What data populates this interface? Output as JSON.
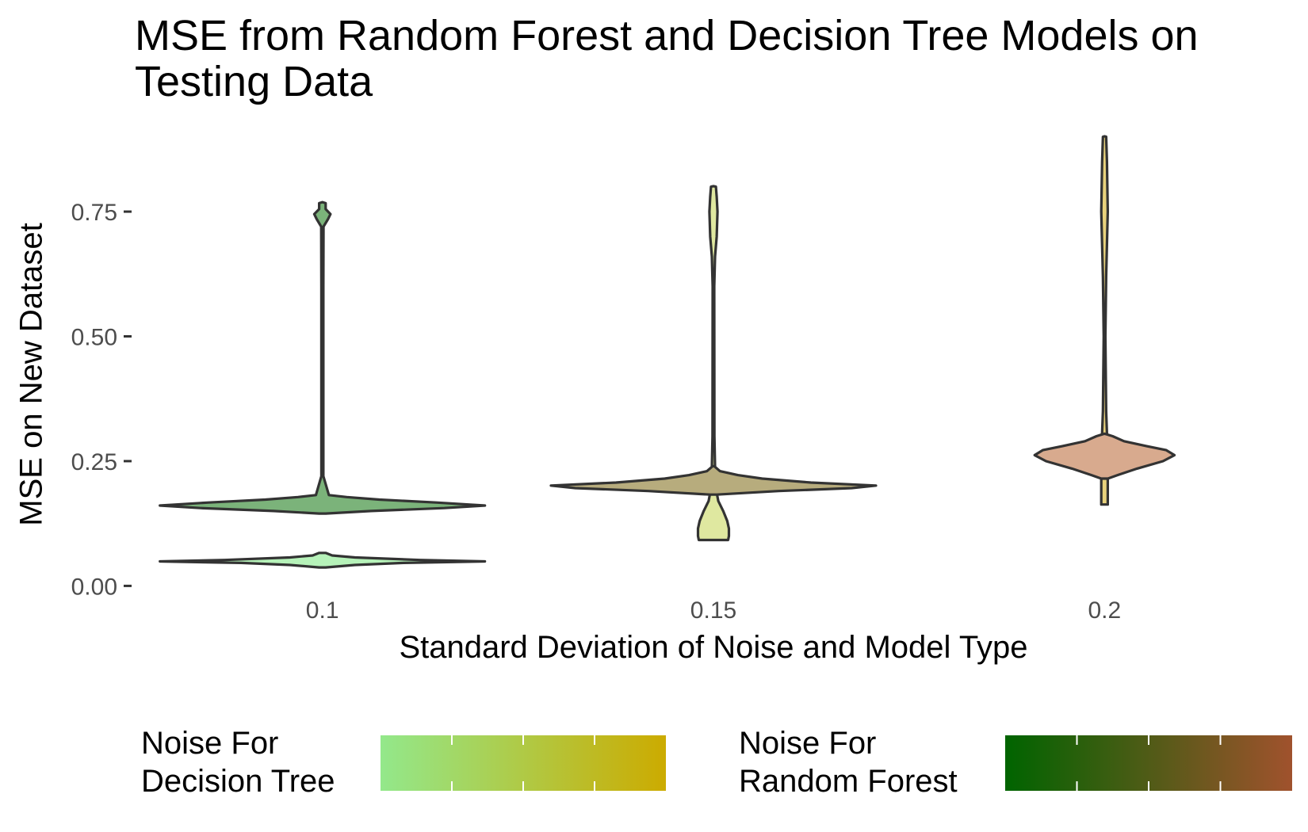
{
  "chart_data": {
    "type": "violin",
    "title": "MSE from Random Forest and Decision Tree Models on\nTesting Data",
    "xlabel": "Standard Deviation of Noise and Model Type",
    "ylabel": "MSE on New Dataset",
    "categories": [
      "0.1",
      "0.15",
      "0.2"
    ],
    "ylim": [
      -0.02,
      0.92
    ],
    "y_ticks": [
      {
        "value": 0.0,
        "label": "0.00"
      },
      {
        "value": 0.25,
        "label": "0.25"
      },
      {
        "value": 0.5,
        "label": "0.50"
      },
      {
        "value": 0.75,
        "label": "0.75"
      }
    ],
    "grid": false,
    "legend_position": "bottom",
    "series": [
      {
        "model": "Decision Tree",
        "noise": "0.1",
        "fill": "#b6f2b9",
        "density": [
          {
            "y": 0.037,
            "w": 0.02
          },
          {
            "y": 0.042,
            "w": 0.2
          },
          {
            "y": 0.046,
            "w": 0.5
          },
          {
            "y": 0.049,
            "w": 1.0
          },
          {
            "y": 0.052,
            "w": 0.6
          },
          {
            "y": 0.057,
            "w": 0.2
          },
          {
            "y": 0.061,
            "w": 0.06
          },
          {
            "y": 0.066,
            "w": 0.02
          }
        ]
      },
      {
        "model": "Random Forest",
        "noise": "0.1",
        "fill": "#7bb37a",
        "density": [
          {
            "y": 0.145,
            "w": 0.02
          },
          {
            "y": 0.15,
            "w": 0.3
          },
          {
            "y": 0.156,
            "w": 0.75
          },
          {
            "y": 0.161,
            "w": 1.0
          },
          {
            "y": 0.167,
            "w": 0.7
          },
          {
            "y": 0.173,
            "w": 0.35
          },
          {
            "y": 0.178,
            "w": 0.15
          },
          {
            "y": 0.182,
            "w": 0.04
          },
          {
            "y": 0.22,
            "w": 0.006
          },
          {
            "y": 0.4,
            "w": 0.006
          },
          {
            "y": 0.6,
            "w": 0.006
          },
          {
            "y": 0.72,
            "w": 0.007
          },
          {
            "y": 0.735,
            "w": 0.035
          },
          {
            "y": 0.745,
            "w": 0.05
          },
          {
            "y": 0.755,
            "w": 0.02
          },
          {
            "y": 0.767,
            "w": 0.02
          },
          {
            "y": 0.769,
            "w": 0.0
          }
        ]
      },
      {
        "model": "Decision Tree",
        "noise": "0.15",
        "fill": "#dfe8a0",
        "density": [
          {
            "y": 0.092,
            "w": 0.09
          },
          {
            "y": 0.1,
            "w": 0.095
          },
          {
            "y": 0.115,
            "w": 0.095
          },
          {
            "y": 0.13,
            "w": 0.085
          },
          {
            "y": 0.15,
            "w": 0.06
          },
          {
            "y": 0.17,
            "w": 0.03
          },
          {
            "y": 0.2,
            "w": 0.012
          },
          {
            "y": 0.3,
            "w": 0.006
          },
          {
            "y": 0.6,
            "w": 0.005
          },
          {
            "y": 0.66,
            "w": 0.01
          },
          {
            "y": 0.7,
            "w": 0.02
          },
          {
            "y": 0.75,
            "w": 0.025
          },
          {
            "y": 0.78,
            "w": 0.02
          },
          {
            "y": 0.8,
            "w": 0.015
          },
          {
            "y": 0.801,
            "w": 0.0
          }
        ]
      },
      {
        "model": "Random Forest",
        "noise": "0.15",
        "fill": "#b7ac7d",
        "density": [
          {
            "y": 0.183,
            "w": 0.02
          },
          {
            "y": 0.19,
            "w": 0.4
          },
          {
            "y": 0.196,
            "w": 0.85
          },
          {
            "y": 0.201,
            "w": 1.0
          },
          {
            "y": 0.207,
            "w": 0.6
          },
          {
            "y": 0.215,
            "w": 0.3
          },
          {
            "y": 0.222,
            "w": 0.15
          },
          {
            "y": 0.23,
            "w": 0.04
          },
          {
            "y": 0.24,
            "w": 0.005
          }
        ]
      },
      {
        "model": "Decision Tree",
        "noise": "0.2",
        "fill": "#e8d27c",
        "density": [
          {
            "y": 0.163,
            "w": 0.02
          },
          {
            "y": 0.2,
            "w": 0.02
          },
          {
            "y": 0.26,
            "w": 0.02
          },
          {
            "y": 0.35,
            "w": 0.01
          },
          {
            "y": 0.5,
            "w": 0.005
          },
          {
            "y": 0.62,
            "w": 0.01
          },
          {
            "y": 0.75,
            "w": 0.02
          },
          {
            "y": 0.85,
            "w": 0.015
          },
          {
            "y": 0.9,
            "w": 0.01
          },
          {
            "y": 0.901,
            "w": 0.0
          }
        ]
      },
      {
        "model": "Random Forest",
        "noise": "0.2",
        "fill": "#d8aa8e",
        "density": [
          {
            "y": 0.215,
            "w": 0.02
          },
          {
            "y": 0.222,
            "w": 0.08
          },
          {
            "y": 0.235,
            "w": 0.2
          },
          {
            "y": 0.25,
            "w": 0.36
          },
          {
            "y": 0.262,
            "w": 0.43
          },
          {
            "y": 0.272,
            "w": 0.38
          },
          {
            "y": 0.28,
            "w": 0.26
          },
          {
            "y": 0.29,
            "w": 0.12
          },
          {
            "y": 0.3,
            "w": 0.05
          },
          {
            "y": 0.305,
            "w": 0.0
          }
        ]
      }
    ],
    "legends": [
      {
        "title": "Noise For\nDecision Tree",
        "colors": [
          "#93e88b",
          "#ccab00"
        ]
      },
      {
        "title": "Noise For\nRandom Forest",
        "colors": [
          "#006400",
          "#a0522d"
        ]
      }
    ]
  }
}
